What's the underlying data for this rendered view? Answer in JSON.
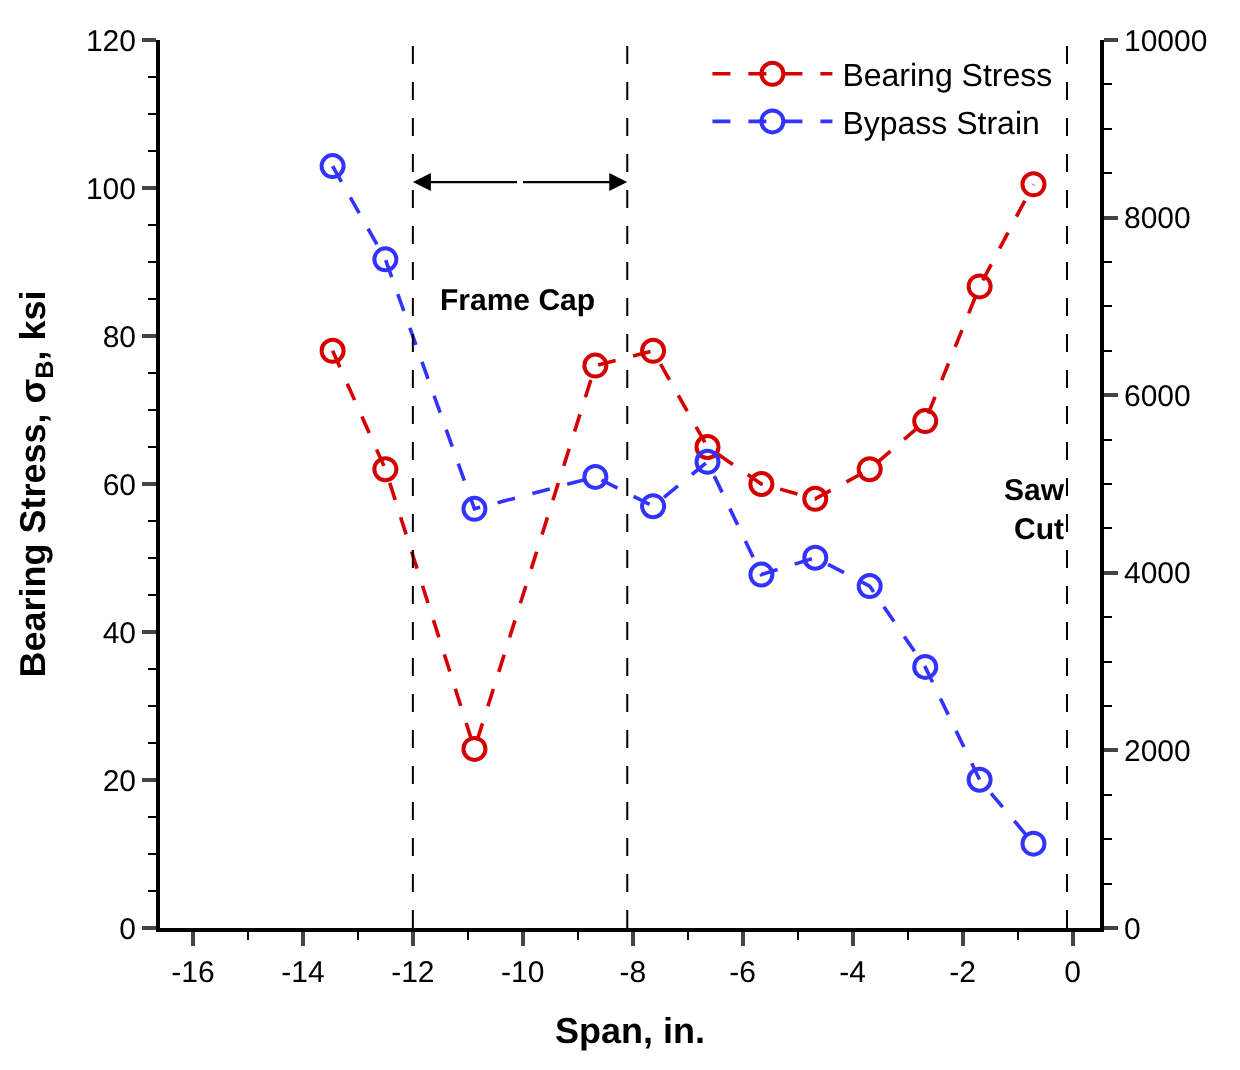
{
  "chart_data": {
    "type": "line",
    "xlabel": "Span, in.",
    "ylabel": "Bearing Stress, σ$_{B}$, ksi",
    "x": [
      -13.46,
      -12.5,
      -10.88,
      -8.68,
      -7.63,
      -6.64,
      -5.66,
      -4.68,
      -3.69,
      -2.68,
      -1.69,
      -0.71
    ],
    "series": [
      {
        "name": "Bearing Stress",
        "color": "#d40000",
        "values": [
          78,
          62,
          24.2,
          76,
          78,
          65,
          60,
          58,
          62,
          68.5,
          86.7,
          100.5
        ]
      },
      {
        "name": "Bypass Strain",
        "color": "#3333ff",
        "axis": "y2",
        "values": [
          8580,
          7530,
          4720,
          5080,
          4750,
          5250,
          3980,
          4170,
          3850,
          2940,
          1670,
          950
        ]
      }
    ],
    "xlim": [
      -16.6,
      0.5
    ],
    "xticks": [
      -16,
      -14,
      -12,
      -10,
      -8,
      -6,
      -4,
      -2,
      0
    ],
    "ylim": [
      0,
      120
    ],
    "yticks": [
      0,
      20,
      40,
      60,
      80,
      100,
      120
    ],
    "y2lim": [
      0,
      10000
    ],
    "y2ticks": [
      0,
      2000,
      4000,
      6000,
      8000,
      10000
    ],
    "ref_lines": [
      {
        "axis": "x",
        "value": -12,
        "color": "#000000",
        "line_style": "dashed"
      },
      {
        "axis": "x",
        "value": -8.1,
        "color": "#000000",
        "line_style": "dashed"
      },
      {
        "axis": "x",
        "value": -0.1,
        "color": "#000000",
        "line_style": "dashed"
      }
    ],
    "annotations": [
      "Frame Cap",
      "Saw Cut"
    ],
    "marker": "circle",
    "line_style": "dashed",
    "legend": "top right"
  }
}
